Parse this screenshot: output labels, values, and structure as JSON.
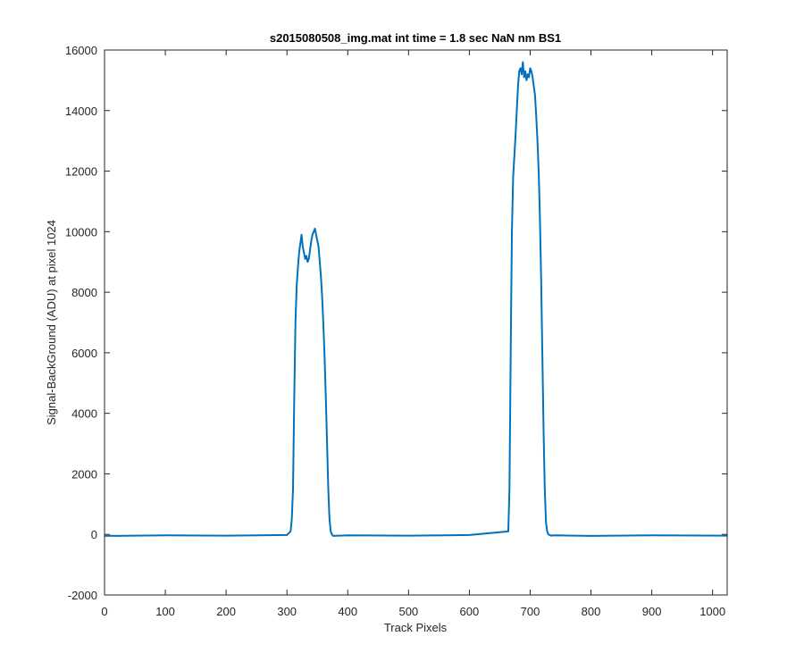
{
  "chart_data": {
    "type": "line",
    "title": "s2015080508_img.mat int time = 1.8 sec  NaN nm BS1",
    "xlabel": "Track Pixels",
    "ylabel": "Signal-BackGround (ADU) at pixel 1024",
    "xlim": [
      0,
      1024
    ],
    "ylim": [
      -2000,
      16000
    ],
    "xticks": [
      0,
      100,
      200,
      300,
      400,
      500,
      600,
      700,
      800,
      900,
      1000
    ],
    "yticks": [
      -2000,
      0,
      2000,
      4000,
      6000,
      8000,
      10000,
      12000,
      14000,
      16000
    ],
    "grid": false,
    "line_color": "#0072BD",
    "series": [
      {
        "x": [
          0,
          100,
          200,
          300,
          306,
          308,
          310,
          312,
          314,
          316,
          318,
          320,
          322,
          324,
          326,
          328,
          330,
          332,
          334,
          336,
          338,
          340,
          342,
          344,
          346,
          348,
          350,
          352,
          354,
          356,
          358,
          360,
          362,
          364,
          366,
          368,
          370,
          372,
          374,
          376,
          400,
          500,
          600,
          664,
          666,
          668,
          670,
          672,
          674,
          676,
          678,
          680,
          682,
          684,
          686,
          688,
          690,
          692,
          694,
          696,
          698,
          700,
          702,
          704,
          706,
          708,
          710,
          712,
          714,
          716,
          718,
          720,
          722,
          724,
          726,
          728,
          730,
          732,
          734,
          740,
          800,
          900,
          1024
        ],
        "y": [
          -50,
          -30,
          -40,
          -20,
          100,
          500,
          1500,
          4500,
          7000,
          8200,
          8800,
          9300,
          9600,
          9900,
          9500,
          9300,
          9100,
          9200,
          9000,
          9100,
          9400,
          9700,
          9900,
          10000,
          10100,
          9900,
          9700,
          9500,
          9000,
          8500,
          7800,
          6900,
          5800,
          4500,
          3000,
          1500,
          500,
          100,
          0,
          -50,
          -30,
          -40,
          -20,
          100,
          1500,
          6000,
          10000,
          11800,
          12500,
          13200,
          14000,
          14800,
          15300,
          15400,
          15200,
          15600,
          15100,
          15300,
          15000,
          15200,
          15100,
          15400,
          15300,
          15100,
          14800,
          14500,
          13800,
          13000,
          12000,
          10500,
          8500,
          6000,
          3500,
          1500,
          400,
          100,
          0,
          -20,
          -40,
          -30,
          -50,
          -30,
          -40
        ]
      }
    ]
  }
}
